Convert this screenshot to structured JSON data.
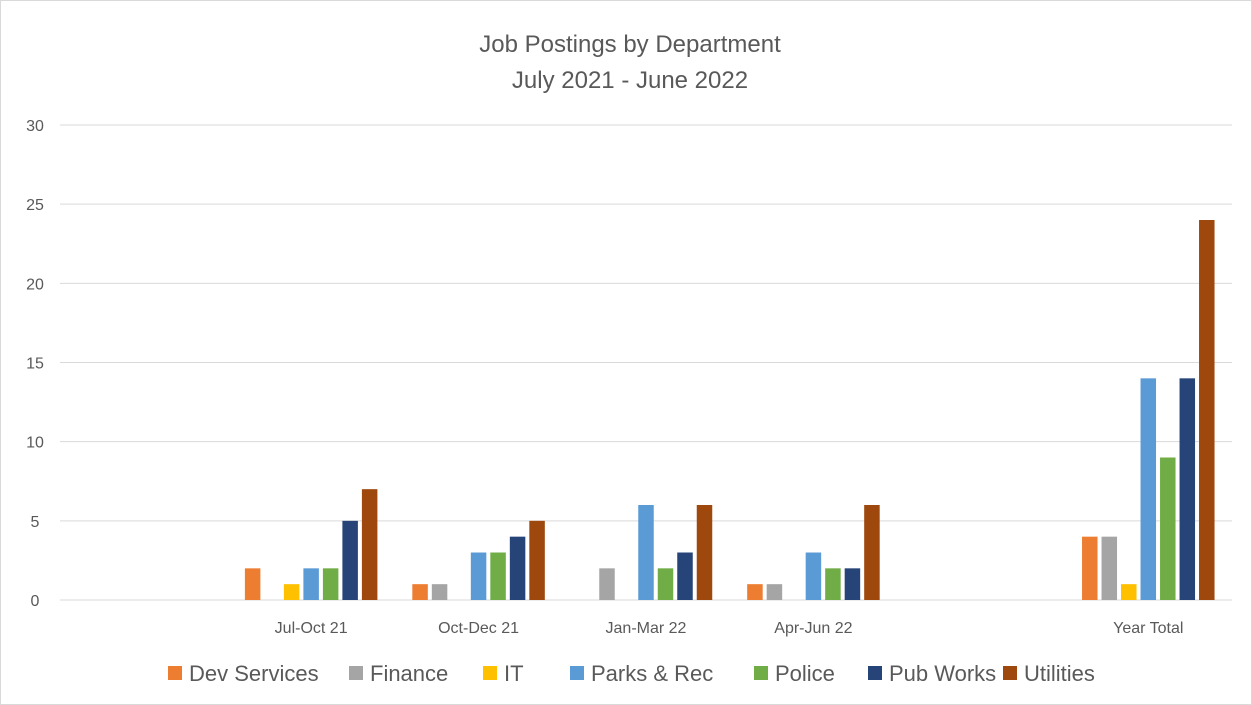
{
  "chart_data": {
    "type": "bar",
    "title": "Job Postings by Department",
    "subtitle": "July 2021 - June 2022",
    "xlabel": "",
    "ylabel": "",
    "ylim": [
      0,
      30
    ],
    "yticks": [
      0,
      5,
      10,
      15,
      20,
      25,
      30
    ],
    "grid": true,
    "legend_position": "bottom",
    "categories": [
      "",
      "Jul-Oct 21",
      "Oct-Dec 21",
      "Jan-Mar 22",
      "Apr-Jun 22",
      "",
      "Year Total"
    ],
    "series": [
      {
        "name": "Dev Services",
        "color": "#ED7D31",
        "values": [
          null,
          2,
          1,
          null,
          1,
          null,
          4
        ]
      },
      {
        "name": "Finance",
        "color": "#A5A5A5",
        "values": [
          null,
          null,
          1,
          2,
          1,
          null,
          4
        ]
      },
      {
        "name": "IT",
        "color": "#FFC000",
        "values": [
          null,
          1,
          null,
          null,
          null,
          null,
          1
        ]
      },
      {
        "name": "Parks & Rec",
        "color": "#5B9BD5",
        "values": [
          null,
          2,
          3,
          6,
          3,
          null,
          14
        ]
      },
      {
        "name": "Police",
        "color": "#70AD47",
        "values": [
          null,
          2,
          3,
          2,
          2,
          null,
          9
        ]
      },
      {
        "name": "Pub Works",
        "color": "#264478",
        "values": [
          null,
          5,
          4,
          3,
          2,
          null,
          14
        ]
      },
      {
        "name": "Utilities",
        "color": "#9E480E",
        "values": [
          null,
          7,
          5,
          6,
          6,
          null,
          24
        ]
      }
    ]
  }
}
